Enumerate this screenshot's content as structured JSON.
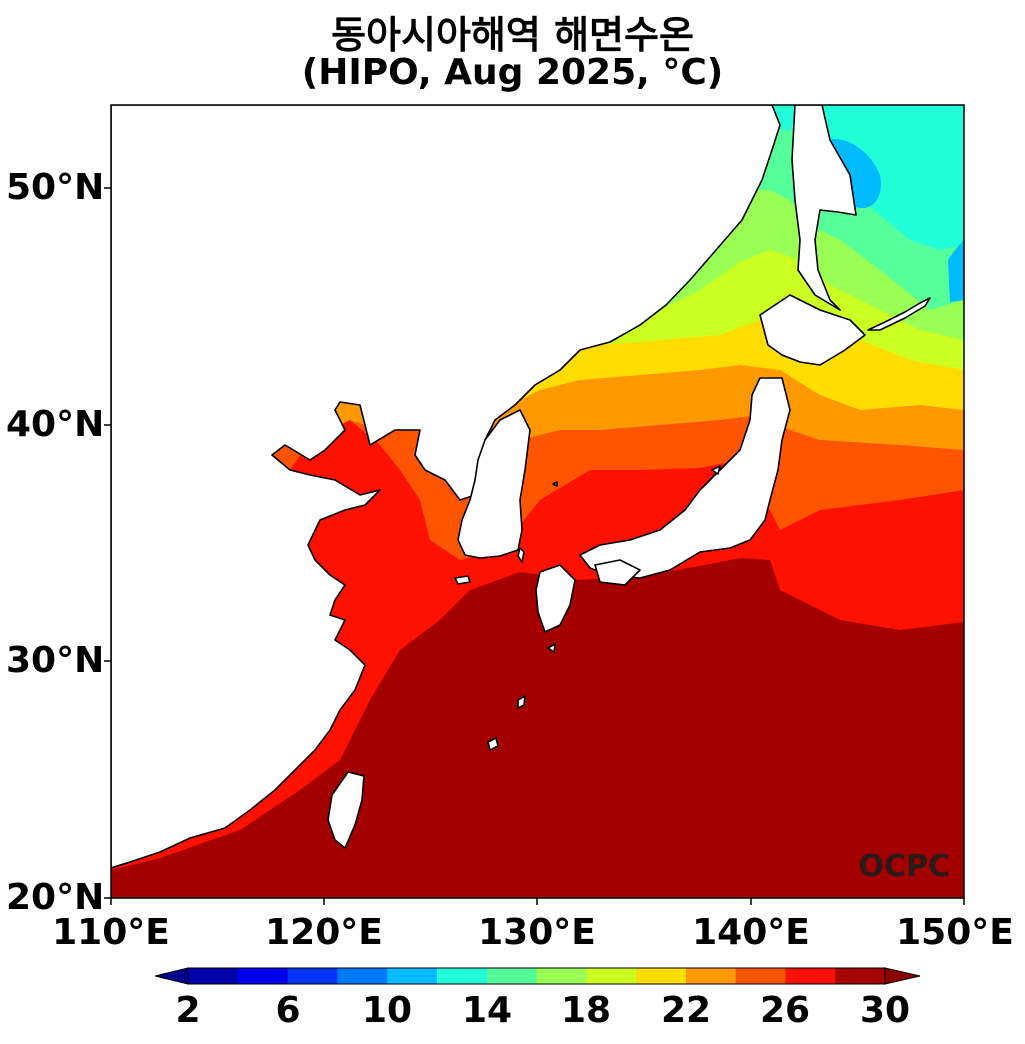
{
  "title": {
    "line1": "동아시아해역 해면수온",
    "line2": "(HIPO, Aug 2025, °C)"
  },
  "axes": {
    "y_ticks": [
      "50°N",
      "40°N",
      "30°N",
      "20°N"
    ],
    "x_ticks": [
      "110°E",
      "120°E",
      "130°E",
      "140°E",
      "150°E"
    ],
    "lat_range": [
      20,
      53.5
    ],
    "lon_range": [
      110,
      150
    ]
  },
  "watermark": "OCPC",
  "colorbar": {
    "ticks": [
      "2",
      "6",
      "10",
      "14",
      "18",
      "22",
      "26",
      "30"
    ],
    "levels": [
      2,
      4,
      6,
      8,
      10,
      12,
      14,
      16,
      18,
      20,
      22,
      24,
      26,
      28,
      30
    ],
    "colors": [
      "#0000a8",
      "#0000f0",
      "#0033ff",
      "#0077ff",
      "#00bbff",
      "#22ffd8",
      "#55ff99",
      "#99ff55",
      "#ccff22",
      "#ffdd00",
      "#ff9900",
      "#ff5500",
      "#ff1100",
      "#a40000"
    ],
    "extend": "both",
    "under_color": "#00008f",
    "over_color": "#8c0000"
  },
  "colors": {
    "land": "#ffffff",
    "coastline": "#000000"
  }
}
